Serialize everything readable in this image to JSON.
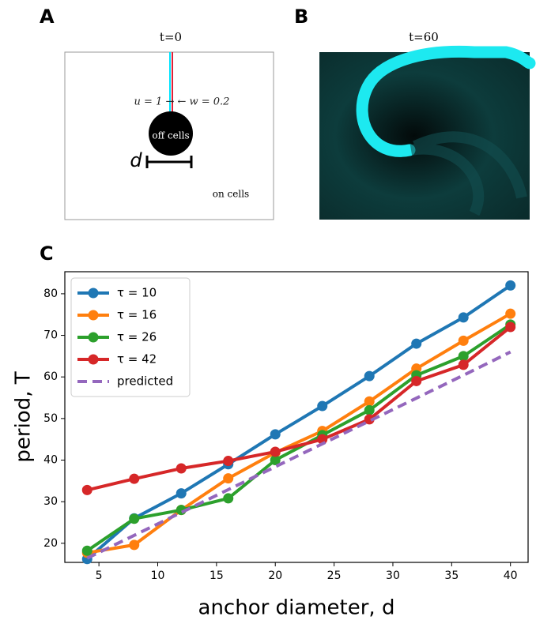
{
  "panels": {
    "A": {
      "label": "A",
      "title": "t=0",
      "annotation": "u = 1 → ← w = 0.2",
      "center_label": "off cells",
      "scale_label": "d",
      "region_label": "on cells"
    },
    "B": {
      "label": "B",
      "title": "t=60"
    },
    "C": {
      "label": "C"
    }
  },
  "chart_data": {
    "type": "line",
    "x_label": "anchor diameter, d",
    "y_label": "period, T",
    "x": [
      4,
      8,
      12,
      16,
      20,
      24,
      28,
      32,
      36,
      40
    ],
    "series": [
      {
        "name": "τ = 10",
        "color": "#1f77b4",
        "values": [
          16.2,
          26,
          32,
          39,
          46.2,
          53,
          60.2,
          68,
          74.3,
          82
        ]
      },
      {
        "name": "τ = 16",
        "color": "#ff7f0e",
        "values": [
          17.7,
          19.6,
          28,
          35.6,
          41.8,
          47,
          54.1,
          62,
          68.7,
          75.2
        ]
      },
      {
        "name": "τ = 26",
        "color": "#2ca02c",
        "values": [
          18.2,
          25.9,
          28,
          30.8,
          40,
          46,
          52,
          60.4,
          65,
          72.6
        ]
      },
      {
        "name": "τ = 42",
        "color": "#d62728",
        "values": [
          32.8,
          35.5,
          38,
          39.8,
          42,
          45,
          49.8,
          59,
          62.9,
          72
        ]
      },
      {
        "name": "predicted",
        "color": "#9467bd",
        "dashed": true,
        "markers": false,
        "values": [
          16.4,
          21.9,
          27.4,
          32.9,
          38.4,
          43.9,
          49.4,
          54.9,
          60.4,
          66
        ]
      }
    ],
    "xlim": [
      2.1,
      41.5
    ],
    "ylim": [
      15.4,
      85.3
    ],
    "xticks": [
      5,
      10,
      15,
      20,
      25,
      30,
      35,
      40
    ],
    "yticks": [
      20,
      30,
      40,
      50,
      60,
      70,
      80
    ],
    "legend": "upper-left"
  }
}
